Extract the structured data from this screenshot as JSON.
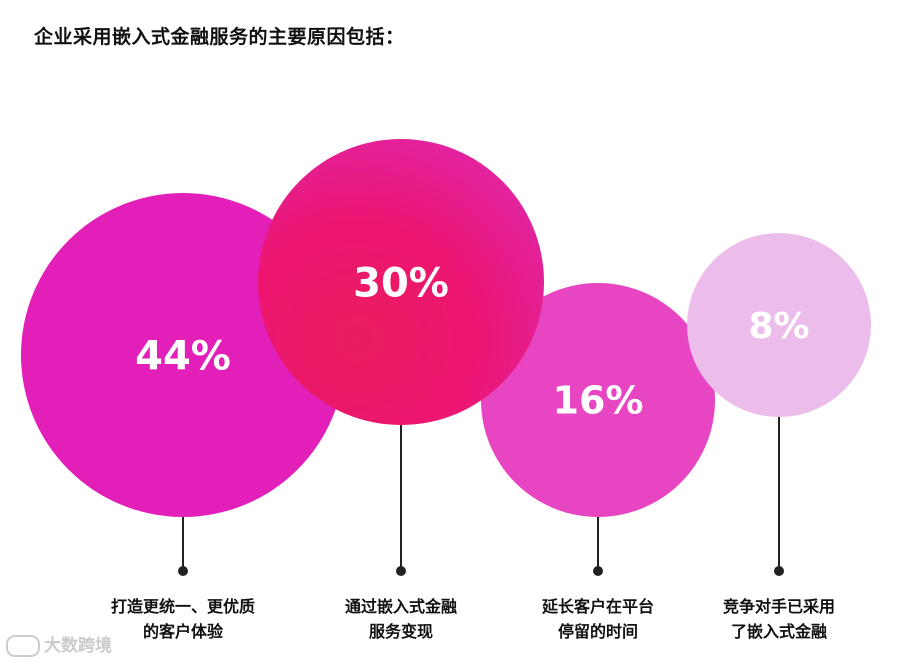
{
  "title": "企业采用嵌入式金融服务的主要原因包括：",
  "watermark": "大数跨境",
  "chart_data": {
    "type": "bubble",
    "title": "企业采用嵌入式金融服务的主要原因包括：",
    "categories": [
      [
        "打造更统一、更优质",
        "的客户体验"
      ],
      [
        "通过嵌入式金融",
        "服务变现"
      ],
      [
        "延长客户在平台",
        "停留的时间"
      ],
      [
        "竞争对手已采用",
        "了嵌入式金融"
      ]
    ],
    "values": [
      44,
      30,
      16,
      8
    ],
    "value_labels": [
      "44%",
      "30%",
      "16%",
      "8%"
    ],
    "colors": [
      "#e21fb9",
      "#ee147f",
      "#e845c3",
      "#ecbdeb"
    ],
    "label_color": "#ffffff",
    "line_color": "#222222"
  }
}
